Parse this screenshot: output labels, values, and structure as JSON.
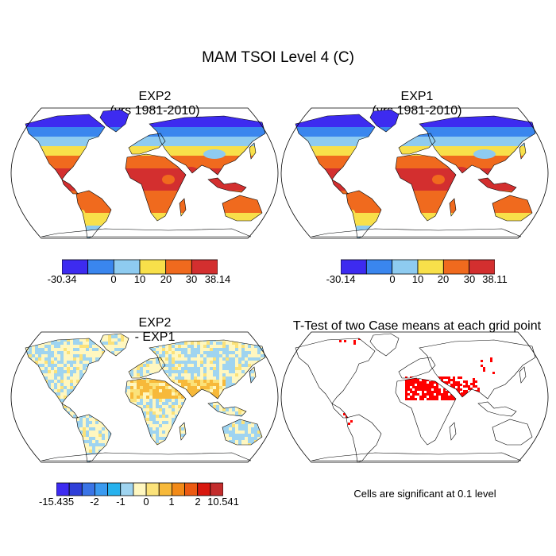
{
  "figure": {
    "title": "MAM TSOI Level 4 (C)"
  },
  "panels": [
    {
      "id": "exp2",
      "title_line1": "EXP2",
      "title_line2": "(yrs 1981-2010)",
      "field": "absolute",
      "colorbar": {
        "colors": [
          "#3d2bf0",
          "#3a86ee",
          "#8ecbf0",
          "#f8e04a",
          "#f06a1e",
          "#d32f2f"
        ],
        "tick_labels": [
          "-30.34",
          "0",
          "10",
          "20",
          "30",
          "38.14"
        ]
      }
    },
    {
      "id": "exp1",
      "title_line1": "EXP1",
      "title_line2": "(yrs 1981-2010)",
      "field": "absolute",
      "colorbar": {
        "colors": [
          "#3d2bf0",
          "#3a86ee",
          "#8ecbf0",
          "#f8e04a",
          "#f06a1e",
          "#d32f2f"
        ],
        "tick_labels": [
          "-30.14",
          "0",
          "10",
          "20",
          "30",
          "38.11"
        ]
      }
    },
    {
      "id": "diff",
      "title_line1": "EXP2",
      "title_line2": "- EXP1",
      "field": "difference",
      "colorbar": {
        "colors": [
          "#3d2bf0",
          "#2f3fd8",
          "#3a74e6",
          "#3a9af0",
          "#27b2ee",
          "#9fd4f0",
          "#fff7c0",
          "#fbe27a",
          "#f7b93a",
          "#f28a18",
          "#ec5a12",
          "#d8180e",
          "#c32d2d"
        ],
        "tick_labels": [
          "-15.435",
          "-2",
          "-1",
          "0",
          "1",
          "2",
          "10.541"
        ]
      }
    },
    {
      "id": "ttest",
      "title_line1": "T-Test of two Case means at each grid point",
      "title_line2": "",
      "field": "significance",
      "significance_color": "#ff0000",
      "note": "Cells are significant at 0.1 level"
    }
  ]
}
